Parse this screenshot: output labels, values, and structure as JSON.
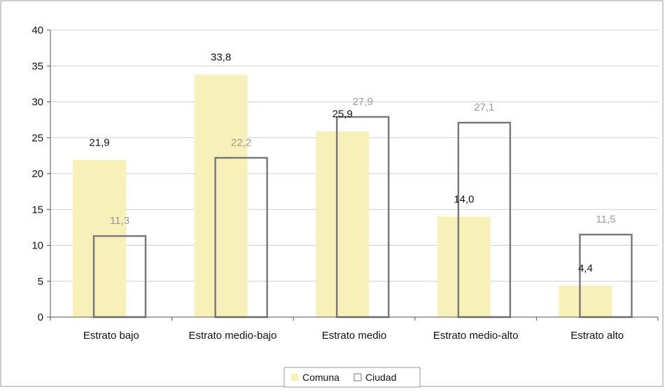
{
  "chart_data": {
    "type": "bar",
    "categories": [
      "Estrato bajo",
      "Estrato medio-bajo",
      "Estrato medio",
      "Estrato medio-alto",
      "Estrato alto"
    ],
    "series": [
      {
        "name": "Comuna",
        "values": [
          21.9,
          33.8,
          25.9,
          14.0,
          4.4
        ],
        "labels": [
          "21,9",
          "33,8",
          "25,9",
          "14,0",
          "4,4"
        ],
        "color": "#f7f0b8",
        "style": "filled"
      },
      {
        "name": "Ciudad",
        "values": [
          11.3,
          22.2,
          27.9,
          27.1,
          11.5
        ],
        "labels": [
          "11,3",
          "22,2",
          "27,9",
          "27,1",
          "11,5"
        ],
        "color": "#7a7a7a",
        "style": "outline"
      }
    ],
    "ylim": [
      0,
      40
    ],
    "yticks": [
      0,
      5,
      10,
      15,
      20,
      25,
      30,
      35,
      40
    ],
    "grid": true,
    "legend_position": "bottom-center",
    "colors": {
      "comuna_label": "#111111",
      "ciudad_label": "#9a9a9a",
      "axis": "#555555",
      "grid": "#cfcfcf",
      "border": "#9a9a9a"
    }
  }
}
